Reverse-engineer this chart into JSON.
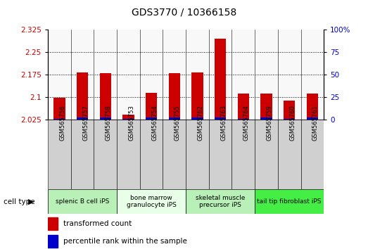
{
  "title": "GDS3770 / 10366158",
  "samples": [
    "GSM565756",
    "GSM565757",
    "GSM565758",
    "GSM565753",
    "GSM565754",
    "GSM565755",
    "GSM565762",
    "GSM565763",
    "GSM565764",
    "GSM565759",
    "GSM565760",
    "GSM565761"
  ],
  "transformed_count": [
    2.097,
    2.183,
    2.181,
    2.042,
    2.115,
    2.181,
    2.183,
    2.295,
    2.112,
    2.112,
    2.088,
    2.112
  ],
  "percentile_rank": [
    1,
    2,
    2,
    1,
    2,
    2,
    2,
    2,
    1,
    2,
    1,
    2
  ],
  "cell_types": [
    {
      "label": "splenic B cell iPS",
      "start": 0,
      "end": 3,
      "color": "#b8f0b8"
    },
    {
      "label": "bone marrow\ngranulocyte iPS",
      "start": 3,
      "end": 6,
      "color": "#e8ffe8"
    },
    {
      "label": "skeletal muscle\nprecursor iPS",
      "start": 6,
      "end": 9,
      "color": "#b8f0b8"
    },
    {
      "label": "tail tip fibroblast iPS",
      "start": 9,
      "end": 12,
      "color": "#44ee44"
    }
  ],
  "ylim_left": [
    2.025,
    2.325
  ],
  "ylim_right": [
    0,
    100
  ],
  "yticks_left": [
    2.025,
    2.1,
    2.175,
    2.25,
    2.325
  ],
  "yticks_right": [
    0,
    25,
    50,
    75,
    100
  ],
  "bar_color": "#cc0000",
  "pct_color": "#0000cc",
  "bar_width": 0.5,
  "bg_color": "#ffffff",
  "left_label_color": "#cc0000",
  "right_label_color": "#0000cc",
  "sample_bg": "#d0d0d0",
  "plot_bg": "#f8f8f8"
}
